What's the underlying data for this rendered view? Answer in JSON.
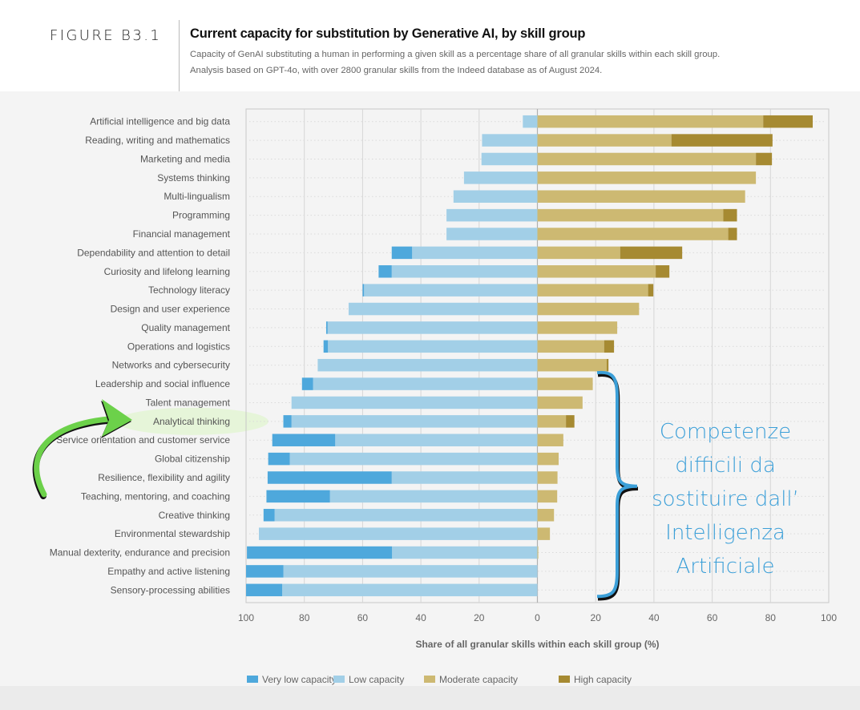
{
  "header": {
    "figure_label": "FIGURE B3.1",
    "title": "Current capacity for substitution by Generative AI, by skill group",
    "subtitle_line1": "Capacity of GenAI substituting a human in performing a given skill as a percentage share of all granular skills within each skill group.",
    "subtitle_line2": "Analysis based on GPT-4o, with over 2800 granular skills from the Indeed database as of August 2024."
  },
  "annotation": {
    "text_lines": [
      "Competenze",
      "difficili da",
      "sostituire dall’",
      "Intelligenza",
      "Artificiale"
    ],
    "highlighted_category": "Analytical thinking",
    "brace_color": "#3b9fd8",
    "arrow_color": "#6cd14a",
    "highlight_color": "#e6f5d9"
  },
  "chart_data": {
    "type": "bar",
    "orientation": "horizontal-diverging-stacked",
    "title": "Current capacity for substitution by Generative AI, by skill group",
    "xlabel": "Share of all granular skills within each skill group (%)",
    "ylabel": "",
    "xlim": [
      -100,
      100
    ],
    "x_ticks": [
      -100,
      -80,
      -60,
      -40,
      -20,
      0,
      20,
      40,
      60,
      80,
      100
    ],
    "x_tick_labels": [
      "100",
      "80",
      "60",
      "40",
      "20",
      "0",
      "20",
      "40",
      "60",
      "80",
      "100"
    ],
    "grid": true,
    "legend_position": "bottom",
    "colors": {
      "very_low": "#4ea8dc",
      "low": "#a2cfe7",
      "moderate": "#cdb972",
      "high": "#a68a32"
    },
    "legend": [
      {
        "key": "very_low",
        "label": "Very low capacity"
      },
      {
        "key": "low",
        "label": "Low capacity"
      },
      {
        "key": "moderate",
        "label": "Moderate capacity"
      },
      {
        "key": "high",
        "label": "High capacity"
      }
    ],
    "categories": [
      "Artificial intelligence and big data",
      "Reading, writing and mathematics",
      "Marketing and media",
      "Systems thinking",
      "Multi-lingualism",
      "Programming",
      "Financial management",
      "Dependability and attention to detail",
      "Curiosity and lifelong learning",
      "Technology literacy",
      "Design and user experience",
      "Quality management",
      "Operations and logistics",
      "Networks and cybersecurity",
      "Leadership and social influence",
      "Talent management",
      "Analytical thinking",
      "Service orientation and customer service",
      "Global citizenship",
      "Resilience, flexibility and agility",
      "Teaching, mentoring, and coaching",
      "Creative thinking",
      "Environmental stewardship",
      "Manual dexterity, endurance and precision",
      "Empathy and active listening",
      "Sensory-processing abilities"
    ],
    "series": [
      {
        "name": "Very low capacity",
        "key": "very_low",
        "values": [
          0,
          0,
          0,
          0,
          0,
          0,
          0,
          7,
          4.5,
          0.5,
          0,
          0.5,
          1.5,
          0,
          3.8,
          0,
          2.8,
          21.6,
          7.4,
          42.6,
          21.8,
          3.8,
          0,
          49.8,
          12.8,
          12.4
        ]
      },
      {
        "name": "Low capacity",
        "key": "low",
        "values": [
          5,
          19,
          19.2,
          25.2,
          28.8,
          31.2,
          31.2,
          43,
          50,
          59.5,
          64.8,
          72,
          71.9,
          75.4,
          77,
          84.4,
          84.4,
          69.4,
          85,
          50,
          71.2,
          90.2,
          95.6,
          49.9,
          87.2,
          87.6
        ]
      },
      {
        "name": "Moderate capacity",
        "key": "moderate",
        "values": [
          77.5,
          46,
          75,
          75,
          71.3,
          63.8,
          65.5,
          28.4,
          40.6,
          38,
          34.9,
          27.4,
          22.9,
          23.8,
          19,
          15.5,
          9.8,
          8.9,
          7.3,
          6.9,
          6.8,
          5.7,
          4.3,
          0.3,
          0,
          0
        ]
      },
      {
        "name": "High capacity",
        "key": "high",
        "values": [
          17,
          34.7,
          5.5,
          0,
          0,
          4.7,
          3,
          21.3,
          4.7,
          1.8,
          0,
          0,
          3.4,
          0.6,
          0,
          0,
          2.9,
          0,
          0,
          0,
          0,
          0,
          0,
          0,
          0,
          0
        ]
      }
    ]
  }
}
